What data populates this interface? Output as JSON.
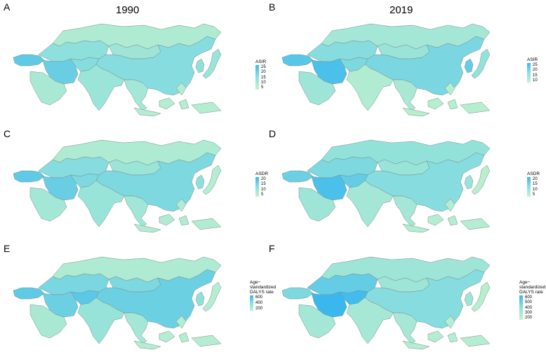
{
  "columns": [
    "1990",
    "2019"
  ],
  "colors": {
    "low": "#c4f2cc",
    "mid": "#8ee0dc",
    "high": "#3ab8ee",
    "border": "#7a8d8a",
    "ocean": "#ffffff"
  },
  "panels": [
    {
      "letter": "A",
      "year": "1990",
      "legend_title": [
        "ASIR"
      ],
      "legend_ticks": [
        "25",
        "20",
        "15",
        "10",
        "5"
      ],
      "fills": {
        "turkey": 0.78,
        "iran": 0.72,
        "arabia": 0.25,
        "centralasia": 0.5,
        "russia": 0.2,
        "mongolia": 0.35,
        "china": 0.55,
        "india": 0.38,
        "seasia": 0.3,
        "indonesia": 0.15,
        "japan": 0.4,
        "korea": 0.5,
        "afghan": 0.55
      }
    },
    {
      "letter": "B",
      "year": "2019",
      "legend_title": [
        "ASIR"
      ],
      "legend_ticks": [
        "25",
        "20",
        "15",
        "10"
      ],
      "fills": {
        "turkey": 0.82,
        "iran": 0.9,
        "arabia": 0.35,
        "centralasia": 0.55,
        "russia": 0.3,
        "mongolia": 0.4,
        "china": 0.62,
        "india": 0.18,
        "seasia": 0.25,
        "indonesia": 0.12,
        "japan": 0.45,
        "korea": 0.75,
        "afghan": 0.6
      }
    },
    {
      "letter": "C",
      "year": "1990",
      "legend_title": [
        "ASDR"
      ],
      "legend_ticks": [
        "20",
        "15",
        "10",
        "5"
      ],
      "fills": {
        "turkey": 0.78,
        "iran": 0.72,
        "arabia": 0.3,
        "centralasia": 0.55,
        "russia": 0.2,
        "mongolia": 0.38,
        "china": 0.6,
        "india": 0.4,
        "seasia": 0.32,
        "indonesia": 0.18,
        "japan": 0.15,
        "korea": 0.5,
        "afghan": 0.6
      }
    },
    {
      "letter": "D",
      "year": "2019",
      "legend_title": [
        "ASDR"
      ],
      "legend_ticks": [
        "20",
        "15",
        "10",
        "5"
      ],
      "fills": {
        "turkey": 0.7,
        "iran": 0.9,
        "arabia": 0.35,
        "centralasia": 0.6,
        "russia": 0.45,
        "mongolia": 0.4,
        "china": 0.55,
        "india": 0.3,
        "seasia": 0.3,
        "indonesia": 0.15,
        "japan": 0.1,
        "korea": 0.4,
        "afghan": 0.75
      }
    },
    {
      "letter": "E",
      "year": "1990",
      "legend_title": [
        "Age−",
        "standardized",
        "DALYS rate"
      ],
      "legend_ticks": [
        "600",
        "400",
        "200"
      ],
      "fills": {
        "turkey": 0.78,
        "iran": 0.7,
        "arabia": 0.25,
        "centralasia": 0.62,
        "russia": 0.2,
        "mongolia": 0.6,
        "china": 0.7,
        "india": 0.42,
        "seasia": 0.3,
        "indonesia": 0.15,
        "japan": 0.15,
        "korea": 0.5,
        "afghan": 0.8
      }
    },
    {
      "letter": "F",
      "year": "2019",
      "legend_title": [
        "Age−",
        "standardized",
        "DALYS rate"
      ],
      "legend_ticks": [
        "600",
        "500",
        "400",
        "300",
        "200"
      ],
      "fills": {
        "turkey": 0.6,
        "iran": 1.0,
        "arabia": 0.3,
        "centralasia": 0.75,
        "russia": 0.35,
        "mongolia": 0.35,
        "china": 0.55,
        "india": 0.28,
        "seasia": 0.28,
        "indonesia": 0.15,
        "japan": 0.12,
        "korea": 0.35,
        "afghan": 0.95
      }
    }
  ]
}
